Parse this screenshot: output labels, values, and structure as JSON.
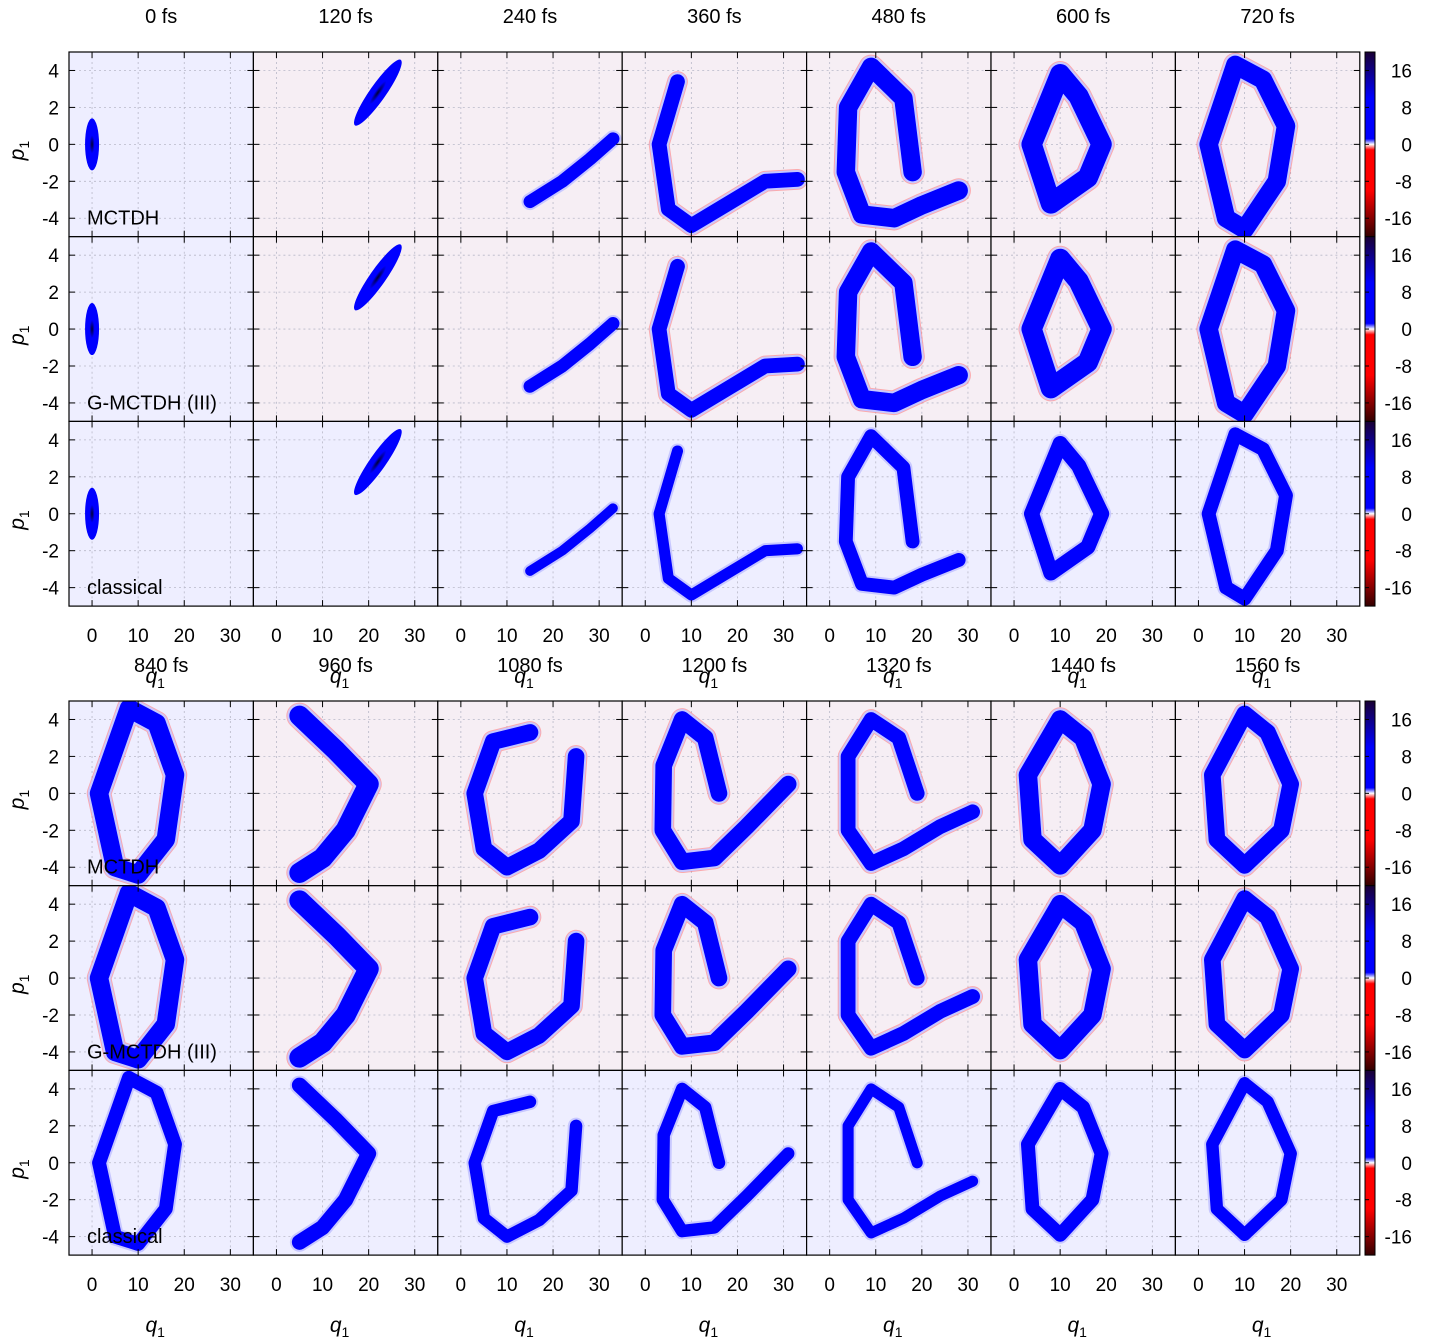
{
  "figure": {
    "rows": [
      "MCTDH",
      "G-MCTDH (III)",
      "classical"
    ],
    "colorbar_ticks": [
      "16",
      "8",
      "0",
      "-8",
      "-16"
    ],
    "colorbar_colors": [
      "#1a0033",
      "#0000ff",
      "#ffffff",
      "#ff0000",
      "#330000"
    ],
    "background_color": "#eeeeff"
  },
  "chart_data": [
    {
      "type": "heatmap",
      "panel_group": "top",
      "times": [
        "0 fs",
        "120 fs",
        "240 fs",
        "360 fs",
        "480 fs",
        "600 fs",
        "720 fs"
      ],
      "rows": [
        "MCTDH",
        "G-MCTDH (III)",
        "classical"
      ],
      "xlabel_main": "q",
      "xlabel_sub": "1",
      "ylabel_main": "p",
      "ylabel_sub": "1",
      "xlim": [
        -5,
        35
      ],
      "ylim": [
        -5,
        5
      ],
      "xticks": [
        "0",
        "10",
        "20",
        "30"
      ],
      "yticks": [
        "4",
        "2",
        "0",
        "-2",
        "-4"
      ],
      "colorbar": {
        "range": [
          -20,
          20
        ],
        "ticks": [
          16,
          8,
          0,
          -8,
          -16
        ]
      },
      "grid": true
    },
    {
      "type": "heatmap",
      "panel_group": "bottom",
      "times": [
        "840 fs",
        "960 fs",
        "1080 fs",
        "1200 fs",
        "1320 fs",
        "1440 fs",
        "1560 fs"
      ],
      "rows": [
        "MCTDH",
        "G-MCTDH (III)",
        "classical"
      ],
      "xlabel_main": "q",
      "xlabel_sub": "1",
      "ylabel_main": "p",
      "ylabel_sub": "1",
      "xlim": [
        -5,
        35
      ],
      "ylim": [
        -5,
        5
      ],
      "xticks": [
        "0",
        "10",
        "20",
        "30"
      ],
      "yticks": [
        "4",
        "2",
        "0",
        "-2",
        "-4"
      ],
      "colorbar": {
        "range": [
          -20,
          20
        ],
        "ticks": [
          16,
          8,
          0,
          -8,
          -16
        ]
      },
      "grid": true
    }
  ]
}
